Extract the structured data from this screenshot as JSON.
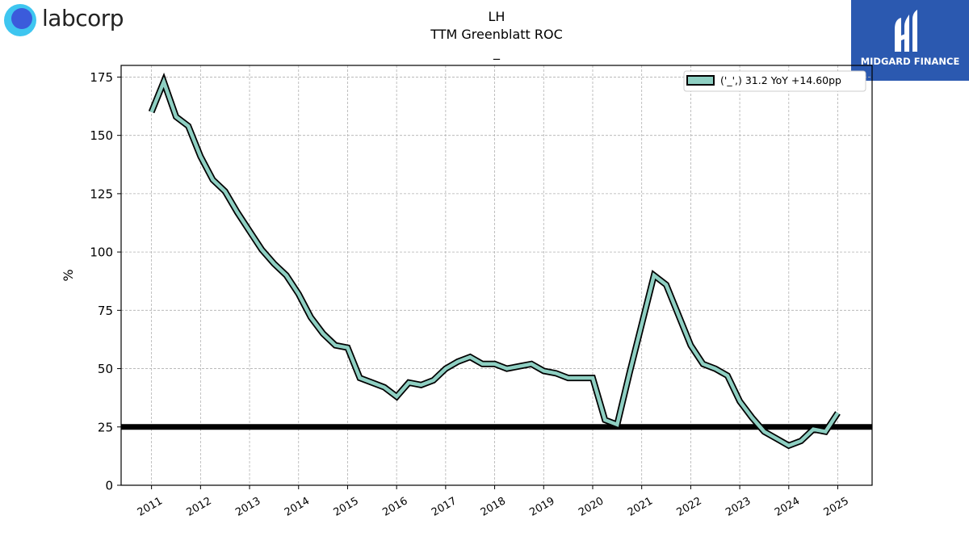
{
  "logos": {
    "left": "labcorp",
    "right": "MIDGARD FINANCE"
  },
  "chart_data": {
    "type": "line",
    "title": "LH",
    "subtitle": "TTM Greenblatt ROC",
    "subtitle2": "_",
    "xlabel": "",
    "ylabel": "%",
    "ylim": [
      0,
      180
    ],
    "xlim": [
      2010.38,
      2025.7
    ],
    "yticks": [
      0,
      25,
      50,
      75,
      100,
      125,
      150,
      175
    ],
    "xticks": [
      "2011",
      "2012",
      "2013",
      "2014",
      "2015",
      "2016",
      "2017",
      "2018",
      "2019",
      "2020",
      "2021",
      "2022",
      "2023",
      "2024",
      "2025"
    ],
    "grid": true,
    "legend_position": "top-right",
    "legend": [
      "('_',) 31.2 YoY +14.60pp"
    ],
    "reference_line": 25,
    "colors": {
      "series": "#8ecfc2",
      "outline": "#000000",
      "reference": "#000000"
    },
    "series": [
      {
        "x": [
          2011.0,
          2011.25,
          2011.5,
          2011.75,
          2012.0,
          2012.25,
          2012.5,
          2012.75,
          2013.0,
          2013.25,
          2013.5,
          2013.75,
          2014.0,
          2014.25,
          2014.5,
          2014.75,
          2015.0,
          2015.25,
          2015.5,
          2015.75,
          2016.0,
          2016.25,
          2016.5,
          2016.75,
          2017.0,
          2017.25,
          2017.5,
          2017.75,
          2018.0,
          2018.25,
          2018.5,
          2018.75,
          2019.0,
          2019.25,
          2019.5,
          2019.75,
          2020.0,
          2020.25,
          2020.5,
          2020.75,
          2021.0,
          2021.25,
          2021.5,
          2021.75,
          2022.0,
          2022.25,
          2022.5,
          2022.75,
          2023.0,
          2023.25,
          2023.5,
          2023.75,
          2024.0,
          2024.25,
          2024.5,
          2024.75,
          2025.0
        ],
        "values": [
          160,
          173,
          158,
          154,
          141,
          131,
          126,
          117,
          109,
          101,
          95,
          90,
          82,
          72,
          65,
          60,
          59,
          46,
          44,
          42,
          38,
          44,
          43,
          45,
          50,
          53,
          55,
          52,
          52,
          50,
          51,
          52,
          49,
          48,
          46,
          46,
          46,
          28,
          26,
          48,
          69,
          90,
          86,
          73,
          60,
          52,
          50,
          47,
          36,
          29,
          23,
          20,
          17,
          19,
          24,
          23,
          31
        ]
      }
    ]
  }
}
